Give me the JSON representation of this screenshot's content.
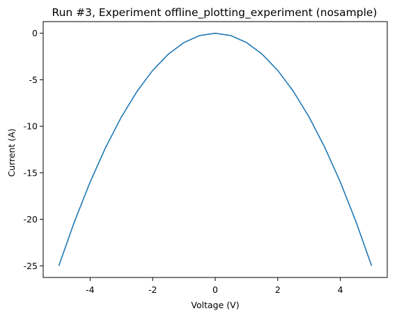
{
  "chart_data": {
    "type": "line",
    "title": "Run #3, Experiment offline_plotting_experiment (nosample)",
    "xlabel": "Voltage (V)",
    "ylabel": "Current (A)",
    "xlim": [
      -5.5,
      5.5
    ],
    "ylim": [
      -26.25,
      1.25
    ],
    "x_ticks": [
      -4,
      -2,
      0,
      2,
      4
    ],
    "x_tick_labels": [
      "-4",
      "-2",
      "0",
      "2",
      "4"
    ],
    "y_ticks": [
      0,
      -5,
      -10,
      -15,
      -20,
      -25
    ],
    "y_tick_labels": [
      "0",
      "-5",
      "-10",
      "-15",
      "-20",
      "-25"
    ],
    "grid": false,
    "legend": "none",
    "series": [
      {
        "color": "#1f77b4",
        "x": [
          -5,
          -4.5,
          -4,
          -3.5,
          -3,
          -2.5,
          -2,
          -1.5,
          -1,
          -0.5,
          0,
          0.5,
          1,
          1.5,
          2,
          2.5,
          3,
          3.5,
          4,
          4.5,
          5
        ],
        "y": [
          -25,
          -20.25,
          -16,
          -12.25,
          -9,
          -6.25,
          -4,
          -2.25,
          -1,
          -0.25,
          0,
          -0.25,
          -1,
          -2.25,
          -4,
          -6.25,
          -9,
          -12.25,
          -16,
          -20.25,
          -25
        ]
      }
    ]
  }
}
